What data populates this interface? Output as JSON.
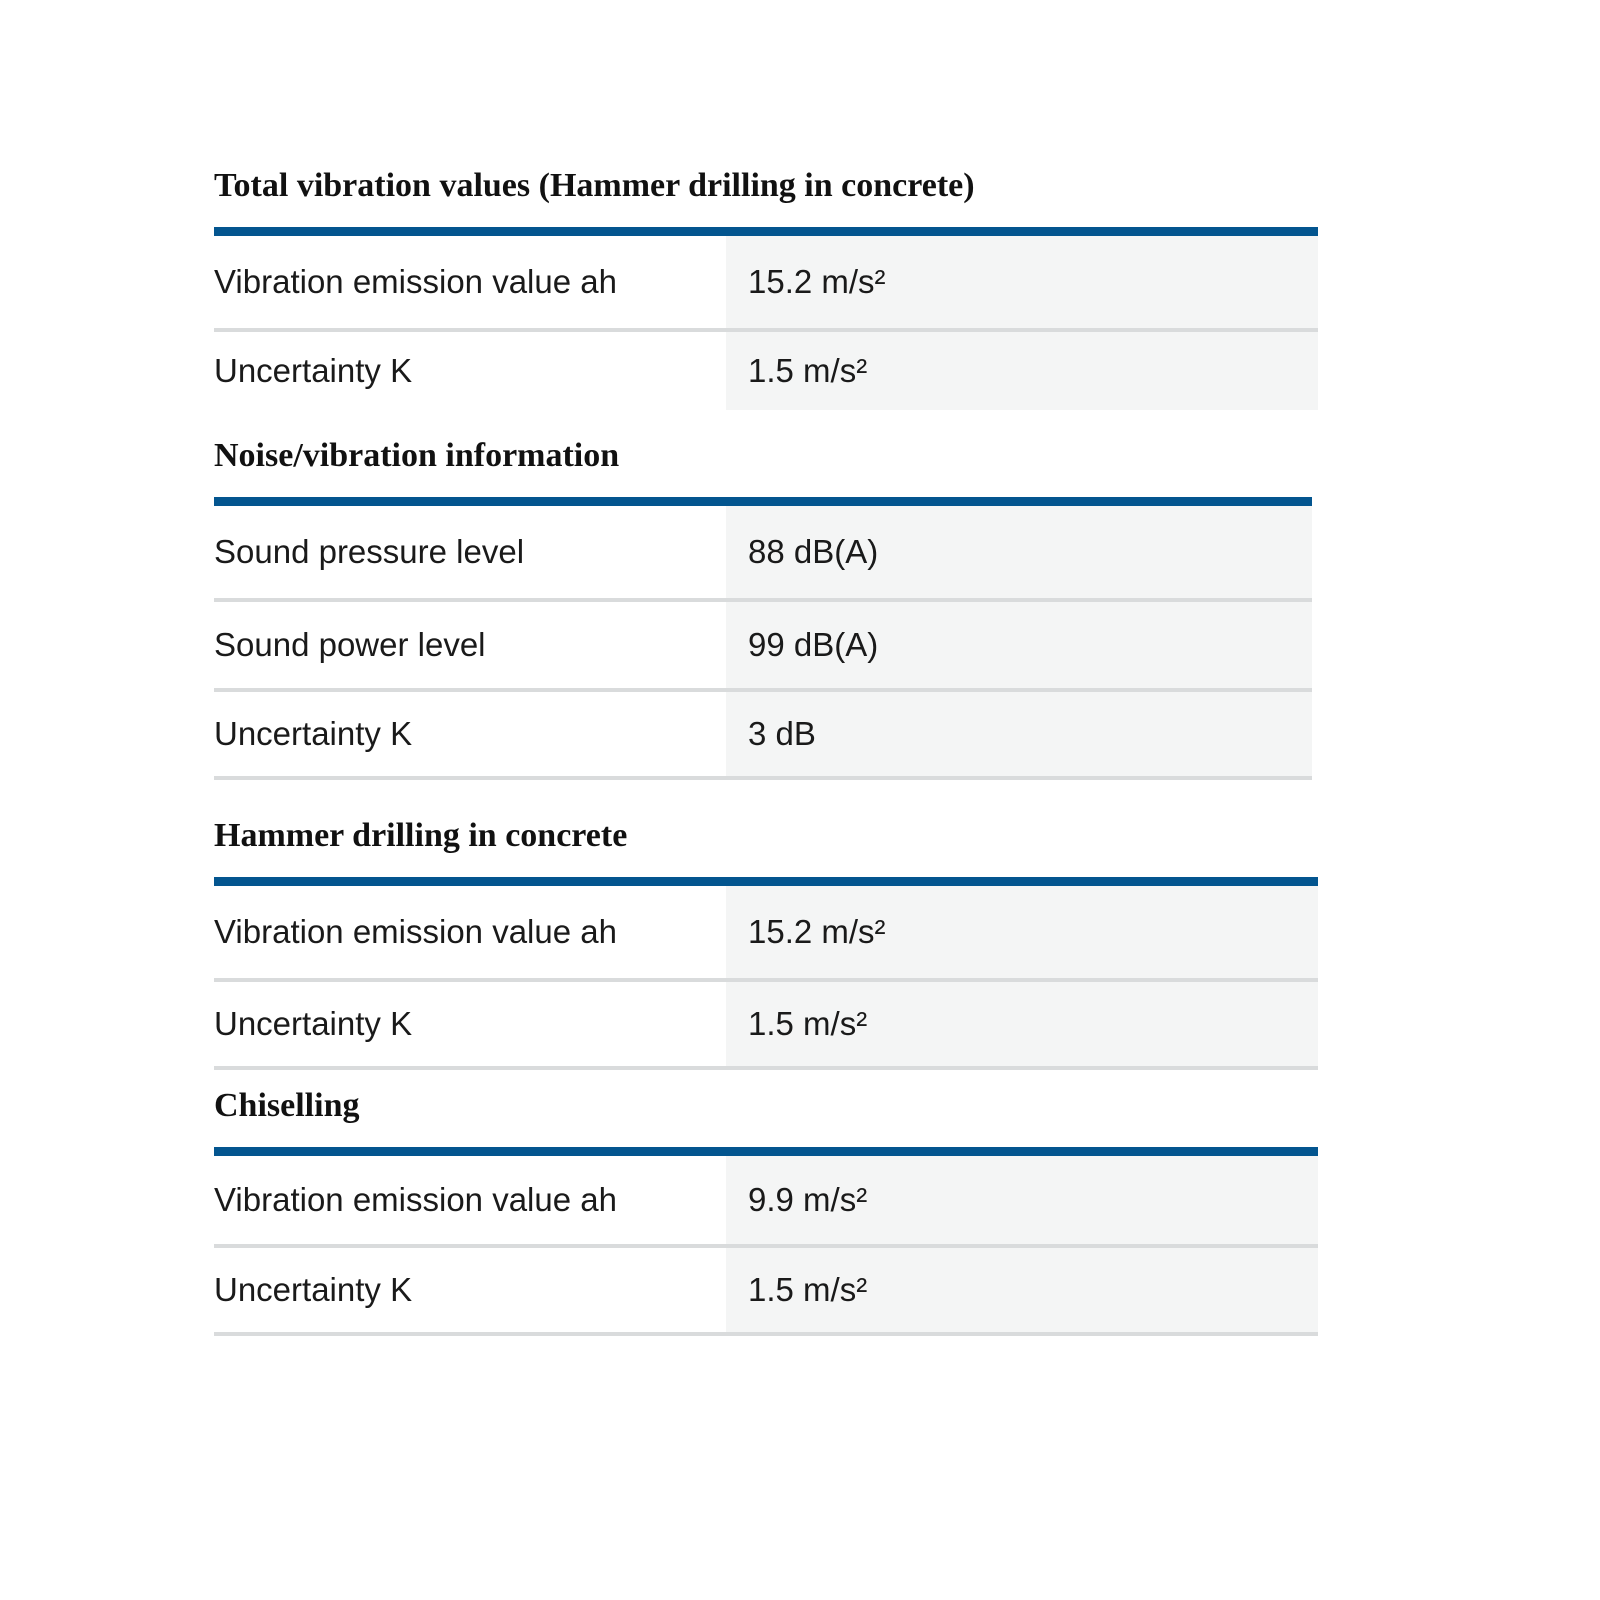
{
  "sections": [
    {
      "title": "Total vibration values (Hammer drilling in concrete)",
      "rows": [
        {
          "label": "Vibration emission value ah",
          "value": "15.2 m/s²"
        },
        {
          "label": "Uncertainty K",
          "value": "1.5 m/s²"
        }
      ]
    },
    {
      "title": "Noise/vibration information",
      "rows": [
        {
          "label": "Sound pressure level",
          "value": "88 dB(A)"
        },
        {
          "label": "Sound power level",
          "value": "99 dB(A)"
        },
        {
          "label": "Uncertainty K",
          "value": "3 dB"
        }
      ]
    },
    {
      "title": "Hammer drilling in concrete",
      "rows": [
        {
          "label": "Vibration emission value ah",
          "value": "15.2 m/s²"
        },
        {
          "label": "Uncertainty K",
          "value": "1.5 m/s²"
        }
      ]
    },
    {
      "title": "Chiselling",
      "rows": [
        {
          "label": "Vibration emission value ah",
          "value": "9.9 m/s²"
        },
        {
          "label": "Uncertainty K",
          "value": "1.5 m/s²"
        }
      ]
    }
  ],
  "colors": {
    "accent": "#03558f",
    "value_background": "#f4f5f5",
    "divider": "#d9dbdc"
  }
}
